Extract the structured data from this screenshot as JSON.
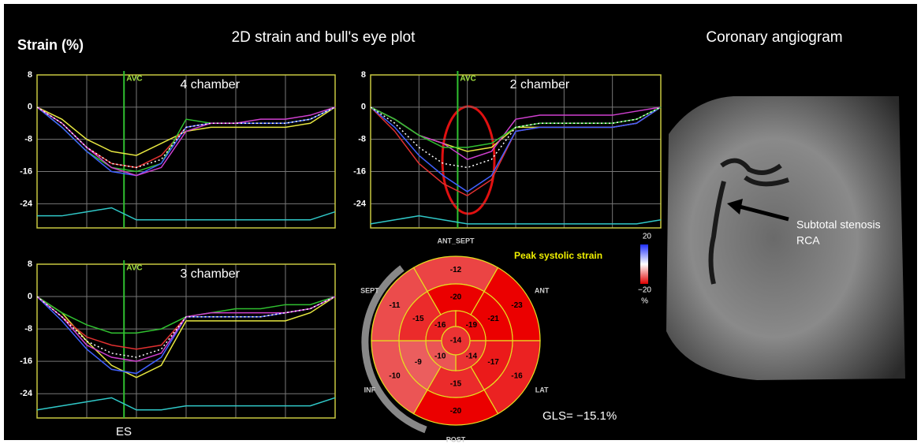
{
  "title_left": "Strain (%)",
  "title_center": "2D strain and bull's eye plot",
  "title_right": "Coronary angiogram",
  "plots": [
    {
      "label": "4 chamber",
      "marker": "AVC",
      "avc": 3.5,
      "xlim": [
        0,
        12
      ],
      "x": [
        0,
        1,
        2,
        3,
        4,
        5,
        6,
        7,
        8,
        9,
        10,
        11,
        12
      ],
      "ylim": [
        -30,
        8
      ],
      "yticks": [
        8,
        0,
        -8,
        -16,
        -24
      ],
      "series": [
        {
          "color": "#e6e640",
          "values": [
            0,
            -3,
            -8,
            -11,
            -12,
            -9,
            -6,
            -5,
            -5,
            -5,
            -5,
            -4,
            0
          ]
        },
        {
          "color": "#e03030",
          "values": [
            0,
            -4,
            -10,
            -14,
            -15,
            -12,
            -5,
            -4,
            -4,
            -4,
            -4,
            -3,
            0
          ]
        },
        {
          "color": "#30c030",
          "values": [
            0,
            -5,
            -11,
            -15,
            -16,
            -14,
            -3,
            -4,
            -4,
            -4,
            -4,
            -3,
            0
          ]
        },
        {
          "color": "#4060ff",
          "values": [
            0,
            -5,
            -11,
            -16,
            -17,
            -14,
            -5,
            -4,
            -4,
            -4,
            -4,
            -3,
            0
          ]
        },
        {
          "color": "#d040d0",
          "values": [
            0,
            -4,
            -10,
            -15,
            -17,
            -15,
            -6,
            -4,
            -4,
            -3,
            -3,
            -2,
            0
          ]
        },
        {
          "color": "#ffffff",
          "dash": true,
          "values": [
            0,
            -4,
            -10,
            -14,
            -15,
            -13,
            -5,
            -4,
            -4,
            -4,
            -4,
            -3,
            0
          ]
        },
        {
          "color": "#30c8c8",
          "values": [
            -27,
            -27,
            -26,
            -25,
            -28,
            -28,
            -28,
            -28,
            -28,
            -28,
            -28,
            -28,
            -26
          ]
        }
      ]
    },
    {
      "label": "2 chamber",
      "marker": "AVC",
      "avc": 3.6,
      "xlim": [
        0,
        12
      ],
      "x": [
        0,
        1,
        2,
        3,
        4,
        5,
        6,
        7,
        8,
        9,
        10,
        11,
        12
      ],
      "ylim": [
        -30,
        8
      ],
      "yticks": [
        8,
        0,
        -8,
        -16,
        -24
      ],
      "series": [
        {
          "color": "#e6e640",
          "values": [
            0,
            -3,
            -7,
            -9,
            -11,
            -10,
            -5,
            -5,
            -5,
            -5,
            -5,
            -4,
            0
          ]
        },
        {
          "color": "#e03030",
          "values": [
            0,
            -6,
            -14,
            -19,
            -22,
            -18,
            -6,
            -5,
            -5,
            -5,
            -5,
            -4,
            0
          ]
        },
        {
          "color": "#4060ff",
          "values": [
            0,
            -5,
            -12,
            -17,
            -21,
            -17,
            -6,
            -5,
            -5,
            -5,
            -5,
            -4,
            0
          ]
        },
        {
          "color": "#d040d0",
          "values": [
            0,
            -3,
            -7,
            -9,
            -13,
            -11,
            -3,
            -2,
            -2,
            -2,
            -2,
            -1,
            0
          ]
        },
        {
          "color": "#30c030",
          "values": [
            0,
            -3,
            -7,
            -10,
            -10,
            -9,
            -5,
            -4,
            -4,
            -4,
            -4,
            -3,
            0
          ]
        },
        {
          "color": "#ffffff",
          "dash": true,
          "values": [
            0,
            -4,
            -10,
            -14,
            -15,
            -13,
            -5,
            -4,
            -4,
            -4,
            -4,
            -3,
            0
          ]
        },
        {
          "color": "#30c8c8",
          "values": [
            -29,
            -28,
            -27,
            -28,
            -29,
            -29,
            -29,
            -29,
            -29,
            -29,
            -29,
            -29,
            -28
          ]
        }
      ]
    },
    {
      "label": "3 chamber",
      "marker": "AVC",
      "avc": 3.5,
      "xlim": [
        0,
        12
      ],
      "x": [
        0,
        1,
        2,
        3,
        4,
        5,
        6,
        7,
        8,
        9,
        10,
        11,
        12
      ],
      "ylim": [
        -30,
        8
      ],
      "yticks": [
        8,
        0,
        -8,
        -16,
        -24
      ],
      "series": [
        {
          "color": "#e6e640",
          "values": [
            0,
            -4,
            -11,
            -17,
            -20,
            -17,
            -6,
            -6,
            -6,
            -6,
            -6,
            -4,
            0
          ]
        },
        {
          "color": "#e03030",
          "values": [
            0,
            -5,
            -10,
            -12,
            -13,
            -12,
            -5,
            -5,
            -5,
            -5,
            -4,
            -3,
            0
          ]
        },
        {
          "color": "#30c030",
          "values": [
            0,
            -4,
            -7,
            -9,
            -9,
            -8,
            -5,
            -4,
            -3,
            -3,
            -2,
            -2,
            0
          ]
        },
        {
          "color": "#4060ff",
          "values": [
            0,
            -6,
            -13,
            -18,
            -19,
            -15,
            -5,
            -5,
            -5,
            -5,
            -4,
            -3,
            0
          ]
        },
        {
          "color": "#d040d0",
          "values": [
            0,
            -5,
            -12,
            -15,
            -16,
            -14,
            -5,
            -4,
            -4,
            -4,
            -4,
            -3,
            0
          ]
        },
        {
          "color": "#ffffff",
          "dash": true,
          "values": [
            0,
            -5,
            -11,
            -14,
            -15,
            -13,
            -5,
            -5,
            -5,
            -5,
            -4,
            -3,
            0
          ]
        },
        {
          "color": "#30c8c8",
          "values": [
            -28,
            -27,
            -26,
            -25,
            -28,
            -28,
            -27,
            -27,
            -27,
            -27,
            -27,
            -27,
            -25
          ]
        }
      ]
    }
  ],
  "es_label": "ES",
  "bullseye": {
    "title": "Peak systolic strain",
    "segment_labels": [
      "ANT_SEPT",
      "ANT",
      "LAT",
      "POST",
      "INF",
      "SEPT"
    ],
    "basal": [
      -12,
      -23,
      -16,
      -20,
      -10,
      -11
    ],
    "mid": [
      -20,
      -21,
      -17,
      -15,
      -9,
      -15
    ],
    "apical": [
      -16,
      -19,
      -14,
      -10
    ],
    "apex": -14,
    "scale": {
      "ticks": [
        20,
        {
          "value": -20,
          "label": "−20"
        }
      ],
      "unit": "%"
    }
  },
  "gls": "GLS= −15.1%",
  "angiogram": {
    "annotation": [
      "Subtotal stenosis",
      "RCA"
    ]
  }
}
